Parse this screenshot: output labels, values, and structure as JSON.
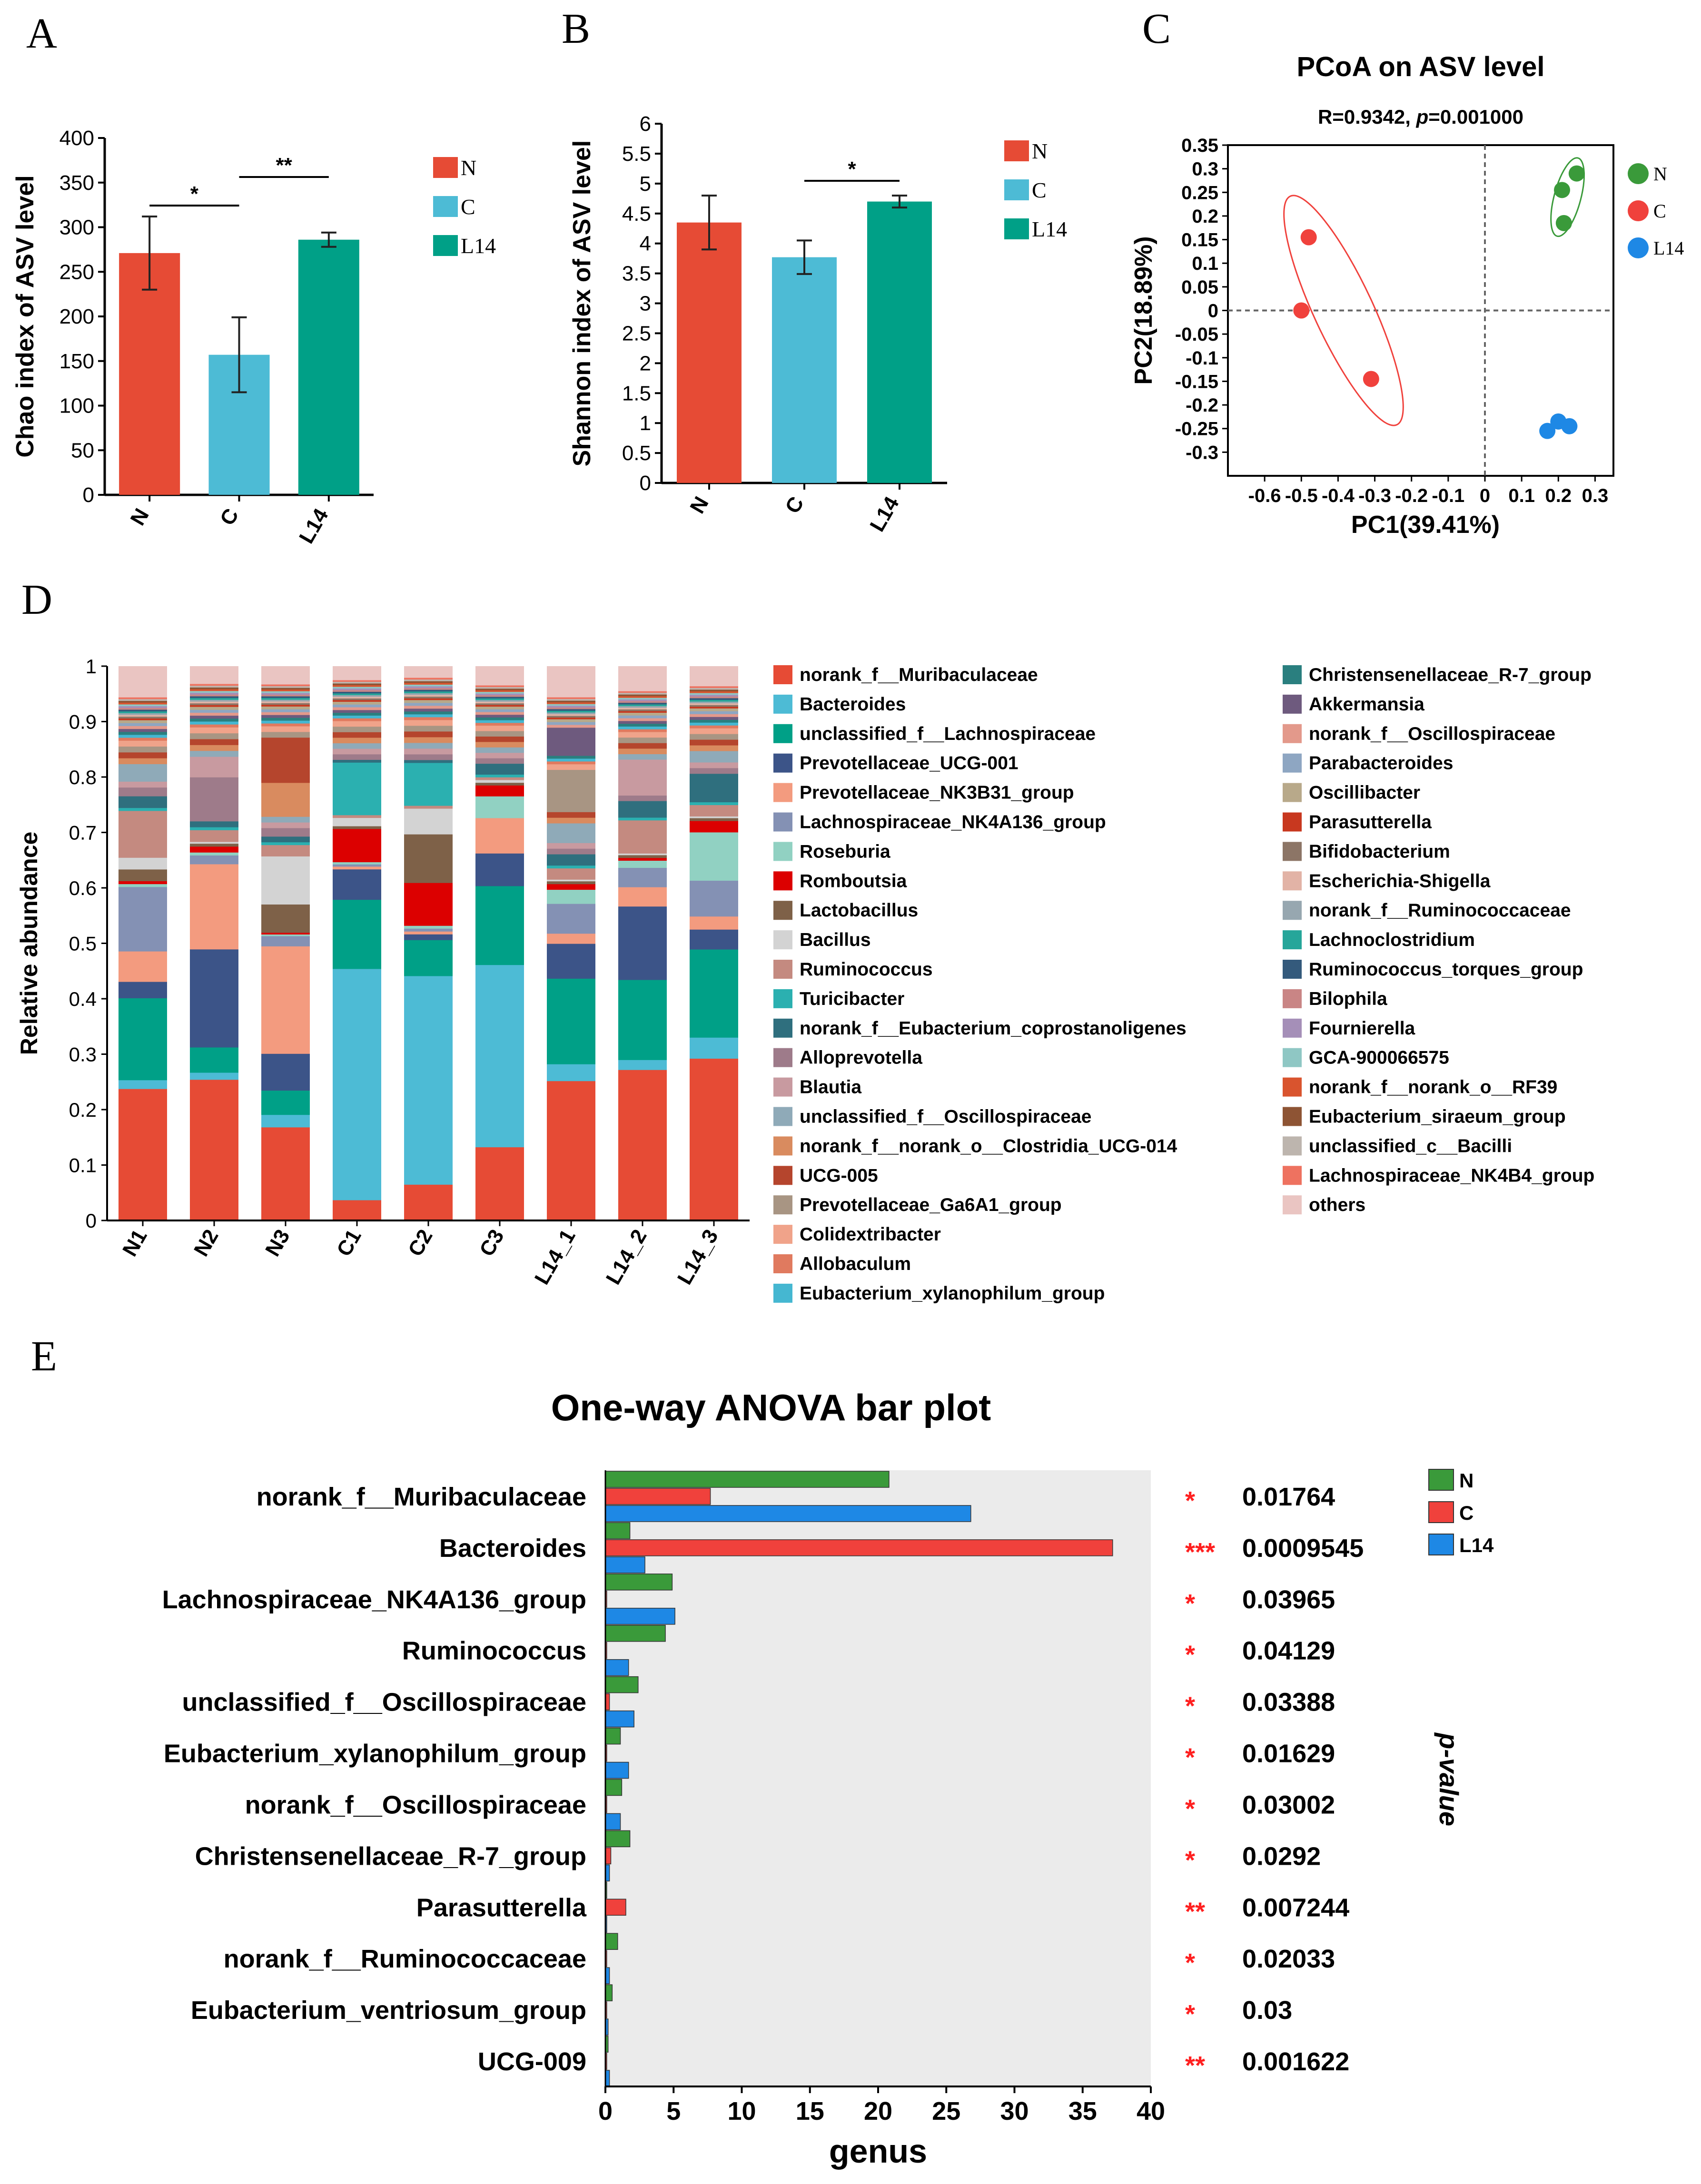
{
  "panel_letters": [
    "A",
    "B",
    "C",
    "D",
    "E"
  ],
  "colors": {
    "N": "#E64B35",
    "C": "#4DBBD5",
    "L14": "#00A087",
    "pcoa_N": "#3A9A3A",
    "pcoa_C": "#F0413C",
    "pcoa_L14": "#1E88E5",
    "anova_N": "#3A9A3A",
    "anova_C": "#F0413C",
    "anova_L14": "#1E88E5",
    "star": "#FF2020",
    "anova_bg": "#EBEBEB"
  },
  "chart_data": [
    {
      "id": "A",
      "type": "bar",
      "title": "",
      "ylabel": "Chao index of ASV level",
      "xlabel": "",
      "categories": [
        "N",
        "C",
        "L14"
      ],
      "values": [
        271,
        157,
        286
      ],
      "errors": [
        41,
        42,
        8
      ],
      "ylim": [
        0,
        400
      ],
      "yticks": [
        "0",
        "50",
        "100",
        "150",
        "200",
        "250",
        "300",
        "350",
        "400"
      ],
      "legend": [
        "N",
        "C",
        "L14"
      ],
      "significance": [
        {
          "from": "N",
          "to": "C",
          "label": "*"
        },
        {
          "from": "C",
          "to": "L14",
          "label": "**"
        }
      ]
    },
    {
      "id": "B",
      "type": "bar",
      "title": "",
      "ylabel": "Shannon index of ASV level",
      "xlabel": "",
      "categories": [
        "N",
        "C",
        "L14"
      ],
      "values": [
        4.35,
        3.77,
        4.7
      ],
      "errors": [
        0.45,
        0.28,
        0.1
      ],
      "ylim": [
        0,
        6
      ],
      "yticks": [
        "0",
        "0.5",
        "1",
        "1.5",
        "2",
        "2.5",
        "3",
        "3.5",
        "4",
        "4.5",
        "5",
        "5.5",
        "6"
      ],
      "legend": [
        "N",
        "C",
        "L14"
      ],
      "significance": [
        {
          "from": "C",
          "to": "L14",
          "label": "*"
        }
      ]
    },
    {
      "id": "C",
      "type": "scatter",
      "title": "PCoA on ASV level",
      "subtitle_prefix": "R=0.9342, ",
      "subtitle_p": "p",
      "subtitle_suffix": "=0.001000",
      "xlabel": "PC1(39.41%)",
      "ylabel": "PC2(18.89%)",
      "xlim": [
        -0.7,
        0.35
      ],
      "ylim": [
        -0.35,
        0.35
      ],
      "xticks": [
        "-0.6",
        "-0.5",
        "-0.4",
        "-0.3",
        "-0.2",
        "-0.1",
        "0",
        "0.1",
        "0.2",
        "0.3"
      ],
      "yticks": [
        "-0.3",
        "-0.25",
        "-0.2",
        "-0.15",
        "-0.1",
        "-0.05",
        "0",
        "0.05",
        "0.1",
        "0.15",
        "0.2",
        "0.25",
        "0.3",
        "0.35"
      ],
      "series": [
        {
          "name": "N",
          "points": [
            [
              0.21,
              0.255
            ],
            [
              0.25,
              0.29
            ],
            [
              0.215,
              0.185
            ]
          ]
        },
        {
          "name": "C",
          "points": [
            [
              -0.48,
              0.155
            ],
            [
              -0.5,
              0.0
            ],
            [
              -0.31,
              -0.145
            ]
          ]
        },
        {
          "name": "L14",
          "points": [
            [
              0.17,
              -0.255
            ],
            [
              0.2,
              -0.235
            ],
            [
              0.23,
              -0.245
            ]
          ]
        }
      ]
    },
    {
      "id": "D",
      "type": "bar",
      "stacked": true,
      "ylabel": "Relative abundance",
      "ylim": [
        0,
        1
      ],
      "yticks": [
        "0",
        "0.1",
        "0.2",
        "0.3",
        "0.4",
        "0.5",
        "0.6",
        "0.7",
        "0.8",
        "0.9",
        "1"
      ],
      "categories": [
        "N1",
        "N2",
        "N3",
        "C1",
        "C2",
        "C3",
        "L14_1",
        "L14_2",
        "L14_3"
      ],
      "series": [
        {
          "name": "norank_f__Muribaculaceae",
          "color": "#E64B35",
          "values": [
            0.225,
            0.24,
            0.165,
            0.037,
            0.063,
            0.135,
            0.248,
            0.273,
            0.285
          ]
        },
        {
          "name": "Bacteroides",
          "color": "#4DBBD5",
          "values": [
            0.015,
            0.012,
            0.022,
            0.418,
            0.365,
            0.335,
            0.03,
            0.018,
            0.037
          ]
        },
        {
          "name": "unclassified_f__Lachnospiraceae",
          "color": "#00A087",
          "values": [
            0.14,
            0.043,
            0.043,
            0.125,
            0.063,
            0.145,
            0.152,
            0.145,
            0.155
          ]
        },
        {
          "name": "Prevotellaceae_UCG-001",
          "color": "#3C5488",
          "values": [
            0.028,
            0.167,
            0.065,
            0.055,
            0.01,
            0.06,
            0.062,
            0.133,
            0.035
          ]
        },
        {
          "name": "Prevotellaceae_NK3B31_group",
          "color": "#F39B7F",
          "values": [
            0.052,
            0.145,
            0.19,
            0.005,
            0.005,
            0.065,
            0.018,
            0.035,
            0.023
          ]
        },
        {
          "name": "Lachnospiraceae_NK4A136_group",
          "color": "#8491B4",
          "values": [
            0.11,
            0.015,
            0.018,
            0.004,
            0.005,
            0.0,
            0.053,
            0.035,
            0.063
          ]
        },
        {
          "name": "Roseburia",
          "color": "#91D1C2",
          "values": [
            0.005,
            0.005,
            0.003,
            0.004,
            0.005,
            0.04,
            0.025,
            0.013,
            0.085
          ]
        },
        {
          "name": "Romboutsia",
          "color": "#DC0000",
          "values": [
            0.005,
            0.01,
            0.003,
            0.06,
            0.075,
            0.02,
            0.01,
            0.005,
            0.02
          ]
        },
        {
          "name": "Lactobacillus",
          "color": "#7E6148",
          "values": [
            0.02,
            0.005,
            0.05,
            0.005,
            0.085,
            0.005,
            0.005,
            0.005,
            0.005
          ]
        },
        {
          "name": "Bacillus",
          "color": "#D3D3D3",
          "values": [
            0.02,
            0.003,
            0.085,
            0.015,
            0.045,
            0.005,
            0.003,
            0.003,
            0.003
          ]
        },
        {
          "name": "Ruminococcus",
          "color": "#C48A80",
          "values": [
            0.08,
            0.02,
            0.02,
            0.005,
            0.005,
            0.005,
            0.02,
            0.06,
            0.02
          ]
        },
        {
          "name": "Turicibacter",
          "color": "#2BB0B0",
          "values": [
            0.005,
            0.005,
            0.005,
            0.095,
            0.075,
            0.005,
            0.005,
            0.005,
            0.005
          ]
        },
        {
          "name": "norank_f__Eubacterium_coprostanoligenes",
          "color": "#2F6F7E",
          "values": [
            0.02,
            0.01,
            0.01,
            0.005,
            0.005,
            0.02,
            0.02,
            0.03,
            0.05
          ]
        },
        {
          "name": "Alloprevotella",
          "color": "#9E7B8A",
          "values": [
            0.015,
            0.075,
            0.015,
            0.01,
            0.01,
            0.01,
            0.01,
            0.01,
            0.01
          ]
        },
        {
          "name": "Blautia",
          "color": "#C89AA0",
          "values": [
            0.01,
            0.035,
            0.01,
            0.01,
            0.01,
            0.01,
            0.01,
            0.065,
            0.01
          ]
        },
        {
          "name": "unclassified_f__Oscillospiraceae",
          "color": "#8FAAB8",
          "values": [
            0.03,
            0.01,
            0.01,
            0.01,
            0.01,
            0.01,
            0.035,
            0.01,
            0.02
          ]
        },
        {
          "name": "norank_f__norank_o__Clostridia_UCG-014",
          "color": "#D98B5F",
          "values": [
            0.01,
            0.01,
            0.06,
            0.01,
            0.01,
            0.01,
            0.01,
            0.01,
            0.01
          ]
        },
        {
          "name": "UCG-005",
          "color": "#B5452D",
          "values": [
            0.01,
            0.01,
            0.08,
            0.01,
            0.01,
            0.01,
            0.01,
            0.01,
            0.01
          ]
        },
        {
          "name": "Prevotellaceae_Ga6A1_group",
          "color": "#A89583",
          "values": [
            0.01,
            0.01,
            0.01,
            0.01,
            0.01,
            0.01,
            0.075,
            0.01,
            0.01
          ]
        },
        {
          "name": "Colidextribacter",
          "color": "#F0A38A",
          "values": [
            0.01,
            0.01,
            0.01,
            0.01,
            0.01,
            0.01,
            0.01,
            0.01,
            0.01
          ]
        },
        {
          "name": "Allobaculum",
          "color": "#E07A5F",
          "values": [
            0.005,
            0.005,
            0.005,
            0.005,
            0.005,
            0.005,
            0.005,
            0.005,
            0.005
          ]
        },
        {
          "name": "Eubacterium_xylanophilum_group",
          "color": "#45B7D1",
          "values": [
            0.005,
            0.005,
            0.005,
            0.005,
            0.005,
            0.005,
            0.005,
            0.005,
            0.005
          ]
        },
        {
          "name": "Christensenellaceae_R-7_group",
          "color": "#2A7F7F",
          "values": [
            0.005,
            0.005,
            0.005,
            0.005,
            0.005,
            0.005,
            0.005,
            0.005,
            0.005
          ]
        },
        {
          "name": "Akkermansia",
          "color": "#6E5A7E",
          "values": [
            0.005,
            0.005,
            0.005,
            0.005,
            0.005,
            0.005,
            0.05,
            0.005,
            0.005
          ]
        },
        {
          "name": "norank_f__Oscillospiraceae",
          "color": "#E3998B",
          "values": [
            0.005,
            0.005,
            0.005,
            0.005,
            0.005,
            0.005,
            0.005,
            0.005,
            0.005
          ]
        },
        {
          "name": "Parabacteroides",
          "color": "#8EA6C2",
          "values": [
            0.005,
            0.005,
            0.005,
            0.005,
            0.005,
            0.005,
            0.005,
            0.005,
            0.005
          ]
        },
        {
          "name": "Oscillibacter",
          "color": "#B8A98A",
          "values": [
            0.005,
            0.005,
            0.005,
            0.005,
            0.005,
            0.005,
            0.005,
            0.005,
            0.005
          ]
        },
        {
          "name": "Parasutterella",
          "color": "#C8381F",
          "values": [
            0.003,
            0.003,
            0.003,
            0.003,
            0.003,
            0.003,
            0.003,
            0.003,
            0.003
          ]
        },
        {
          "name": "Bifidobacterium",
          "color": "#8C7566",
          "values": [
            0.003,
            0.003,
            0.003,
            0.003,
            0.003,
            0.003,
            0.003,
            0.003,
            0.003
          ]
        },
        {
          "name": "Escherichia-Shigella",
          "color": "#E2B3A6",
          "values": [
            0.003,
            0.003,
            0.003,
            0.003,
            0.003,
            0.003,
            0.003,
            0.003,
            0.003
          ]
        },
        {
          "name": "norank_f__Ruminococcaceae",
          "color": "#97A7B0",
          "values": [
            0.003,
            0.003,
            0.003,
            0.003,
            0.003,
            0.003,
            0.003,
            0.003,
            0.003
          ]
        },
        {
          "name": "Lachnoclostridium",
          "color": "#26A69A",
          "values": [
            0.003,
            0.003,
            0.003,
            0.003,
            0.003,
            0.003,
            0.003,
            0.003,
            0.003
          ]
        },
        {
          "name": "Ruminococcus_torques_group",
          "color": "#345A7C",
          "values": [
            0.003,
            0.003,
            0.003,
            0.003,
            0.003,
            0.003,
            0.003,
            0.003,
            0.003
          ]
        },
        {
          "name": "Bilophila",
          "color": "#C98585",
          "values": [
            0.003,
            0.003,
            0.003,
            0.003,
            0.003,
            0.003,
            0.003,
            0.003,
            0.003
          ]
        },
        {
          "name": "Fournierella",
          "color": "#A58FB8",
          "values": [
            0.003,
            0.003,
            0.003,
            0.003,
            0.003,
            0.003,
            0.003,
            0.003,
            0.003
          ]
        },
        {
          "name": "GCA-900066575",
          "color": "#8FC7C4",
          "values": [
            0.003,
            0.003,
            0.003,
            0.003,
            0.003,
            0.003,
            0.003,
            0.003,
            0.003
          ]
        },
        {
          "name": "norank_f__norank_o__RF39",
          "color": "#D9542E",
          "values": [
            0.003,
            0.003,
            0.003,
            0.003,
            0.003,
            0.003,
            0.003,
            0.003,
            0.003
          ]
        },
        {
          "name": "Eubacterium_siraeum_group",
          "color": "#8E5434",
          "values": [
            0.003,
            0.003,
            0.003,
            0.003,
            0.003,
            0.003,
            0.003,
            0.003,
            0.003
          ]
        },
        {
          "name": "unclassified_c__Bacilli",
          "color": "#BDB5AE",
          "values": [
            0.003,
            0.003,
            0.003,
            0.003,
            0.003,
            0.003,
            0.003,
            0.003,
            0.003
          ]
        },
        {
          "name": "Lachnospiraceae_NK4B4_group",
          "color": "#EE7260",
          "values": [
            0.003,
            0.003,
            0.003,
            0.003,
            0.003,
            0.003,
            0.003,
            0.003,
            0.003
          ]
        },
        {
          "name": "others",
          "color": "#EAC5C2",
          "values": [
            0.053,
            0.03,
            0.032,
            0.025,
            0.02,
            0.035,
            0.055,
            0.045,
            0.035
          ]
        }
      ]
    },
    {
      "id": "E",
      "type": "bar",
      "orientation": "horizontal",
      "title": "One-way ANOVA bar plot",
      "xlabel": "genus",
      "ylabel": "p-value",
      "xlim": [
        0,
        40
      ],
      "xticks": [
        "0",
        "5",
        "10",
        "15",
        "20",
        "25",
        "30",
        "35",
        "40"
      ],
      "legend": [
        "N",
        "C",
        "L14"
      ],
      "categories": [
        "norank_f__Muribaculaceae",
        "Bacteroides",
        "Lachnospiraceae_NK4A136_group",
        "Ruminococcus",
        "unclassified_f__Oscillospiraceae",
        "Eubacterium_xylanophilum_group",
        "norank_f__Oscillospiraceae",
        "Christensenellaceae_R-7_group",
        "Parasutterella",
        "norank_f__Ruminococcaceae",
        "Eubacterium_ventriosum_group",
        "UCG-009"
      ],
      "series": [
        {
          "name": "N",
          "values": [
            20.8,
            1.8,
            4.9,
            4.4,
            2.4,
            1.1,
            1.2,
            1.8,
            0.1,
            0.9,
            0.5,
            0.2
          ]
        },
        {
          "name": "C",
          "values": [
            7.7,
            37.2,
            0.1,
            0.1,
            0.3,
            0.1,
            0.1,
            0.4,
            1.5,
            0.1,
            0.1,
            0.1
          ]
        },
        {
          "name": "L14",
          "values": [
            26.8,
            2.9,
            5.1,
            1.7,
            2.1,
            1.7,
            1.1,
            0.3,
            0.1,
            0.3,
            0.2,
            0.3
          ]
        }
      ],
      "stars": [
        "*",
        "***",
        "*",
        "*",
        "*",
        "*",
        "*",
        "*",
        "**",
        "*",
        "*",
        "**"
      ],
      "pvalues": [
        "0.01764",
        "0.0009545",
        "0.03965",
        "0.04129",
        "0.03388",
        "0.01629",
        "0.03002",
        "0.0292",
        "0.007244",
        "0.02033",
        "0.03",
        "0.001622"
      ]
    }
  ]
}
